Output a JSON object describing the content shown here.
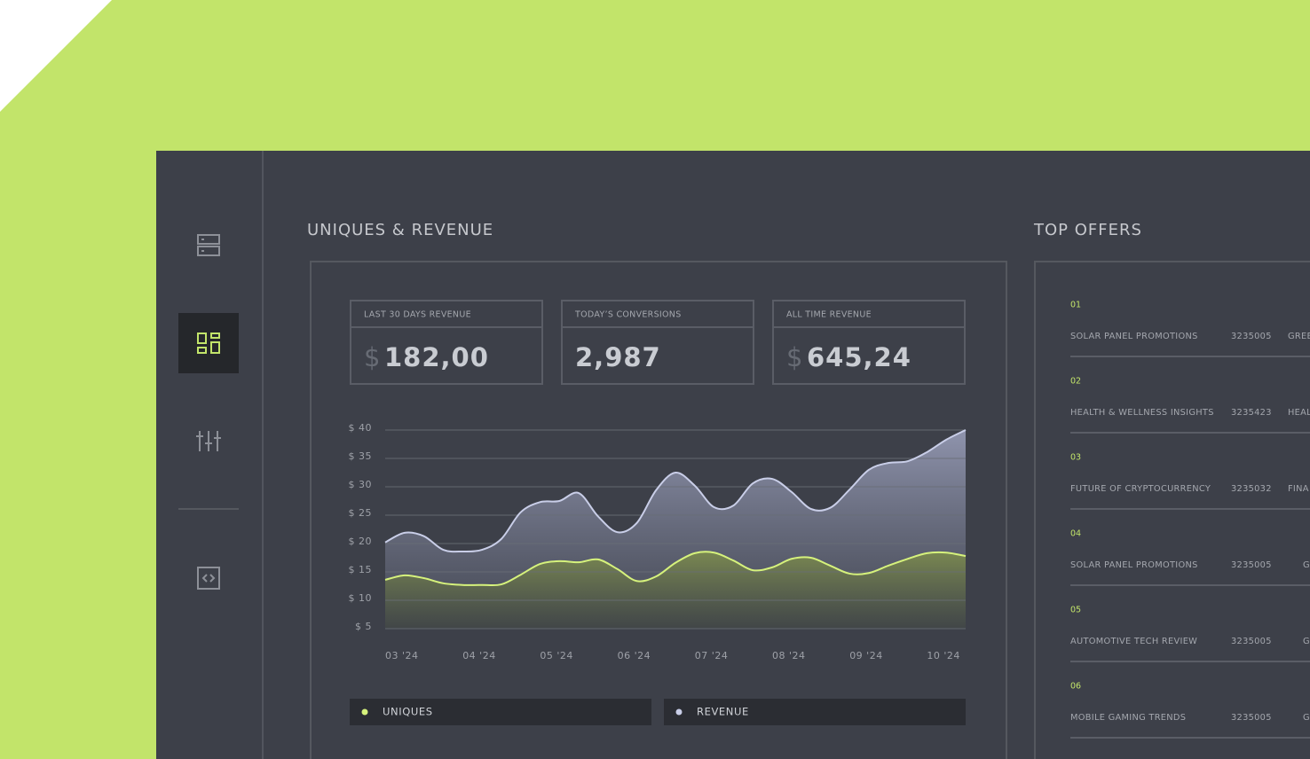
{
  "section_title": "UNIQUES & REVENUE",
  "stats": [
    {
      "label": "LAST 30 DAYS REVENUE",
      "currency": "$",
      "value": "182,00"
    },
    {
      "label": "TODAY’S CONVERSIONS",
      "value": "2,987"
    },
    {
      "label": "ALL TIME REVENUE",
      "currency": "$",
      "value": "645,24"
    }
  ],
  "chart_data": {
    "type": "area",
    "categories": [
      "03 '24",
      null,
      null,
      null,
      "04 '24",
      null,
      null,
      null,
      "05 '24",
      null,
      null,
      null,
      "06 '24",
      null,
      null,
      null,
      "07 '24",
      null,
      null,
      null,
      "08 '24",
      null,
      null,
      null,
      "09 '24",
      null,
      null,
      null,
      "10 '24",
      null,
      null
    ],
    "series": [
      {
        "name": "UNIQUES",
        "color": "#d6f27c",
        "values": [
          13.6,
          14.4,
          13.9,
          13,
          12.7,
          12.7,
          12.8,
          14.5,
          16.4,
          16.9,
          16.7,
          17.2,
          15.5,
          13.4,
          14.2,
          16.6,
          18.3,
          18.4,
          17,
          15.3,
          15.8,
          17.3,
          17.5,
          16.1,
          14.7,
          14.8,
          16.1,
          17.3,
          18.3,
          18.4,
          17.8
        ]
      },
      {
        "name": "REVENUE",
        "color": "#c9cee8",
        "values": [
          20.2,
          21.9,
          21.3,
          18.9,
          18.6,
          18.9,
          20.8,
          25.5,
          27.3,
          27.5,
          28.9,
          24.8,
          22,
          23.6,
          29.4,
          32.5,
          30.2,
          26.4,
          26.7,
          30.6,
          31.4,
          29.1,
          26.1,
          26.3,
          29.5,
          33,
          34.2,
          34.5,
          36.1,
          38.3,
          40
        ]
      }
    ],
    "ylim": [
      5,
      40
    ],
    "yticks": [
      {
        "value": 5,
        "label": "$ 5"
      },
      {
        "value": 10,
        "label": "$ 10"
      },
      {
        "value": 15,
        "label": "$ 15"
      },
      {
        "value": 20,
        "label": "$ 20"
      },
      {
        "value": 25,
        "label": "$ 25"
      },
      {
        "value": 30,
        "label": "$ 30"
      },
      {
        "value": 35,
        "label": "$ 35"
      },
      {
        "value": 40,
        "label": "$ 40"
      }
    ],
    "grid": true
  },
  "top_offers": {
    "title": "TOP OFFERS",
    "rows": [
      {
        "rank": "01",
        "name": "SOLAR PANEL PROMOTIONS",
        "id": "3235005",
        "category": "GREE"
      },
      {
        "rank": "02",
        "name": "HEALTH & WELLNESS INSIGHTS",
        "id": "3235423",
        "category": "HEAL"
      },
      {
        "rank": "03",
        "name": "FUTURE OF CRYPTOCURRENCY",
        "id": "3235032",
        "category": "FINA"
      },
      {
        "rank": "04",
        "name": "SOLAR PANEL PROMOTIONS",
        "id": "3235005",
        "category": "G"
      },
      {
        "rank": "05",
        "name": "AUTOMOTIVE TECH REVIEW",
        "id": "3235005",
        "category": "G"
      },
      {
        "rank": "06",
        "name": "MOBILE GAMING TRENDS",
        "id": "3235005",
        "category": "G"
      }
    ]
  }
}
